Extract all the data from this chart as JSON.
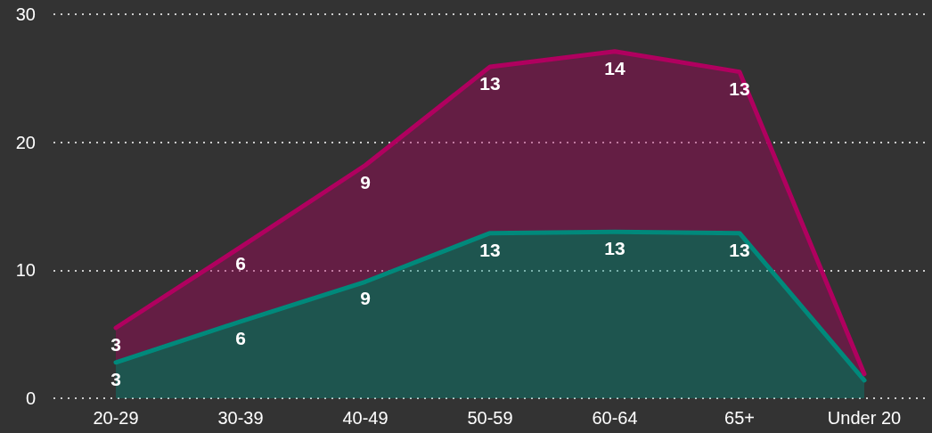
{
  "chart_data": {
    "type": "area",
    "stacked": true,
    "categories": [
      "20-29",
      "30-39",
      "40-49",
      "50-59",
      "60-64",
      "65+",
      "Under 20"
    ],
    "series": [
      {
        "color": "#00897b",
        "values": [
          2.8,
          6,
          9.1,
          12.9,
          13,
          12.9,
          1.4
        ],
        "value_labels": [
          "3",
          "6",
          "9",
          "13",
          "13",
          "13",
          null
        ]
      },
      {
        "color": "#b0005f",
        "values": [
          2.7,
          5.8,
          9.1,
          13,
          14.1,
          12.6,
          0.5
        ],
        "value_labels": [
          "3",
          "6",
          "9",
          "13",
          "14",
          "13",
          null
        ]
      }
    ],
    "ylim": [
      0,
      30
    ],
    "yticks": [
      0,
      10,
      20,
      30
    ],
    "grid": "y",
    "marker": "none",
    "line_style": "solid"
  }
}
